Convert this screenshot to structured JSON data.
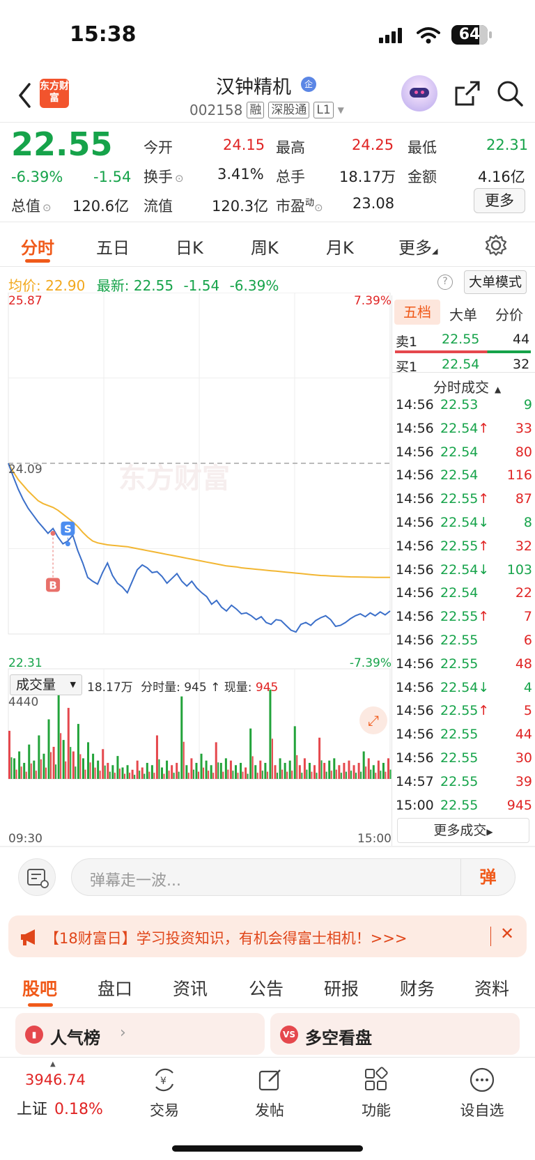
{
  "status_bar": {
    "time": "15:38",
    "battery": "64"
  },
  "header": {
    "logo_text": "东方财富",
    "title": "汉钟精机",
    "badge": "企",
    "code": "002158",
    "tags": [
      "融",
      "深股通",
      "L1"
    ]
  },
  "quote": {
    "price": "22.55",
    "change_pct": "-6.39%",
    "change": "-1.54",
    "fields": [
      {
        "label": "今开",
        "value": "24.15",
        "color": "#e02424"
      },
      {
        "label": "最高",
        "value": "24.25",
        "color": "#e02424"
      },
      {
        "label": "最低",
        "value": "22.31",
        "color": "#16a34a"
      },
      {
        "label": "换手",
        "value": "3.41%",
        "color": "#222222"
      },
      {
        "label": "总手",
        "value": "18.17万",
        "color": "#222222"
      },
      {
        "label": "金额",
        "value": "4.16亿",
        "color": "#222222"
      },
      {
        "label": "总值",
        "value": "120.6亿",
        "color": "#222222"
      },
      {
        "label": "流值",
        "value": "120.3亿",
        "color": "#222222"
      },
      {
        "label": "市盈",
        "value": "23.08",
        "color": "#222222"
      }
    ],
    "pe_sup": "动",
    "more_label": "更多"
  },
  "kline_tabs": [
    "分时",
    "五日",
    "日K",
    "周K",
    "月K",
    "更多"
  ],
  "info_bar": {
    "avg_label": "均价:",
    "avg_value": "22.90",
    "latest_label": "最新:",
    "latest_value": "22.55",
    "latest_change": "-1.54",
    "latest_pct": "-6.39%",
    "big_order_label": "大单模式"
  },
  "chart_data": {
    "type": "line",
    "title": "",
    "y_high": "25.87",
    "y_low": "22.31",
    "y_prev_close": "24.09",
    "pct_high": "7.39%",
    "pct_low": "-7.39%",
    "watermark": "东方财富",
    "x_start": "09:30",
    "x_end": "15:00",
    "ylim": [
      22.31,
      25.87
    ],
    "prev_close": 24.09,
    "price": [
      24.09,
      23.95,
      23.82,
      23.71,
      23.62,
      23.55,
      23.48,
      23.42,
      23.36,
      23.41,
      23.32,
      23.25,
      23.28,
      23.34,
      23.18,
      23.05,
      22.9,
      22.86,
      22.83,
      22.95,
      23.05,
      22.92,
      22.84,
      22.8,
      22.74,
      22.86,
      22.98,
      23.03,
      23.0,
      22.95,
      22.96,
      22.91,
      22.84,
      22.89,
      22.94,
      22.86,
      22.81,
      22.86,
      22.79,
      22.74,
      22.7,
      22.62,
      22.66,
      22.59,
      22.55,
      22.61,
      22.57,
      22.52,
      22.53,
      22.5,
      22.46,
      22.49,
      22.43,
      22.41,
      22.46,
      22.45,
      22.4,
      22.35,
      22.33,
      22.41,
      22.43,
      22.4,
      22.45,
      22.48,
      22.5,
      22.46,
      22.39,
      22.4,
      22.43,
      22.47,
      22.5,
      22.52,
      22.49,
      22.53,
      22.5,
      22.54,
      22.51,
      22.55
    ],
    "avg": [
      24.09,
      24.0,
      23.92,
      23.86,
      23.8,
      23.75,
      23.7,
      23.67,
      23.65,
      23.63,
      23.6,
      23.56,
      23.52,
      23.48,
      23.43,
      23.37,
      23.32,
      23.28,
      23.26,
      23.25,
      23.24,
      23.235,
      23.23,
      23.225,
      23.22,
      23.21,
      23.2,
      23.19,
      23.18,
      23.17,
      23.16,
      23.15,
      23.14,
      23.13,
      23.12,
      23.11,
      23.1,
      23.09,
      23.08,
      23.07,
      23.06,
      23.05,
      23.04,
      23.03,
      23.02,
      23.015,
      23.01,
      23.0,
      22.995,
      22.99,
      22.985,
      22.98,
      22.975,
      22.97,
      22.965,
      22.96,
      22.955,
      22.95,
      22.945,
      22.94,
      22.935,
      22.93,
      22.925,
      22.92,
      22.918,
      22.915,
      22.912,
      22.91,
      22.908,
      22.906,
      22.905,
      22.904,
      22.903,
      22.902,
      22.901,
      22.9,
      22.9,
      22.9
    ],
    "markers": [
      {
        "label": "B",
        "price": 23.36,
        "index": 9
      },
      {
        "label": "S",
        "price": 23.25,
        "index": 12
      }
    ],
    "volume_max": "4440",
    "volume": [
      2100,
      900,
      1200,
      700,
      1500,
      800,
      1900,
      1100,
      2600,
      1400,
      4440,
      1700,
      3100,
      1200,
      2400,
      900,
      1600,
      1100,
      800,
      1300,
      700,
      600,
      1000,
      500,
      600,
      400,
      800,
      500,
      700,
      600,
      1900,
      500,
      800,
      600,
      700,
      3600,
      600,
      900,
      700,
      1100,
      800,
      600,
      1600,
      700,
      900,
      800,
      600,
      700,
      500,
      2200,
      600,
      800,
      700,
      3900,
      600,
      900,
      700,
      800,
      2300,
      600,
      900,
      700,
      600,
      1800,
      700,
      800,
      900,
      600,
      700,
      800,
      600,
      700,
      1200,
      900,
      600,
      800,
      700,
      900
    ]
  },
  "volume_bar": {
    "selector": "成交量",
    "total": "18.17万",
    "tick_label": "分时量:",
    "tick_value": "945",
    "now_label": "现量:",
    "now_value": "945"
  },
  "right_panel": {
    "tabs": [
      "五档",
      "大单",
      "分价"
    ],
    "sell1": {
      "label": "卖1",
      "price": "22.55",
      "vol": "44"
    },
    "buy1": {
      "label": "买1",
      "price": "22.54",
      "vol": "32"
    },
    "trades_title": "分时成交",
    "trades": [
      {
        "time": "14:56",
        "price": "22.53",
        "arrow": "",
        "vol": "9",
        "vcolor": "#16a34a"
      },
      {
        "time": "14:56",
        "price": "22.54",
        "arrow": "↑",
        "vol": "33",
        "vcolor": "#e02424"
      },
      {
        "time": "14:56",
        "price": "22.54",
        "arrow": "",
        "vol": "80",
        "vcolor": "#e02424"
      },
      {
        "time": "14:56",
        "price": "22.54",
        "arrow": "",
        "vol": "116",
        "vcolor": "#e02424"
      },
      {
        "time": "14:56",
        "price": "22.55",
        "arrow": "↑",
        "vol": "87",
        "vcolor": "#e02424"
      },
      {
        "time": "14:56",
        "price": "22.54",
        "arrow": "↓",
        "vol": "8",
        "vcolor": "#16a34a"
      },
      {
        "time": "14:56",
        "price": "22.55",
        "arrow": "↑",
        "vol": "32",
        "vcolor": "#e02424"
      },
      {
        "time": "14:56",
        "price": "22.54",
        "arrow": "↓",
        "vol": "103",
        "vcolor": "#16a34a"
      },
      {
        "time": "14:56",
        "price": "22.54",
        "arrow": "",
        "vol": "22",
        "vcolor": "#e02424"
      },
      {
        "time": "14:56",
        "price": "22.55",
        "arrow": "↑",
        "vol": "7",
        "vcolor": "#e02424"
      },
      {
        "time": "14:56",
        "price": "22.55",
        "arrow": "",
        "vol": "6",
        "vcolor": "#e02424"
      },
      {
        "time": "14:56",
        "price": "22.55",
        "arrow": "",
        "vol": "48",
        "vcolor": "#e02424"
      },
      {
        "time": "14:56",
        "price": "22.54",
        "arrow": "↓",
        "vol": "4",
        "vcolor": "#16a34a"
      },
      {
        "time": "14:56",
        "price": "22.55",
        "arrow": "↑",
        "vol": "5",
        "vcolor": "#e02424"
      },
      {
        "time": "14:56",
        "price": "22.55",
        "arrow": "",
        "vol": "44",
        "vcolor": "#e02424"
      },
      {
        "time": "14:56",
        "price": "22.55",
        "arrow": "",
        "vol": "30",
        "vcolor": "#e02424"
      },
      {
        "time": "14:57",
        "price": "22.55",
        "arrow": "",
        "vol": "39",
        "vcolor": "#e02424"
      },
      {
        "time": "15:00",
        "price": "22.55",
        "arrow": "",
        "vol": "945",
        "vcolor": "#e02424"
      }
    ],
    "more_trades": "更多成交"
  },
  "danmu": {
    "placeholder": "弹幕走一波...",
    "button": "弹"
  },
  "banner": {
    "text": "【18财富日】学习投资知识，有机会得富士相机！>>>"
  },
  "bottom_tabs": [
    "股吧",
    "盘口",
    "资讯",
    "公告",
    "研报",
    "财务",
    "资料"
  ],
  "cards": [
    {
      "icon": "",
      "title": "人气榜"
    },
    {
      "icon": "VS",
      "title": "多空看盘"
    }
  ],
  "nav": {
    "index_value": "3946.74",
    "index_name": "上证",
    "index_pct": "0.18%",
    "items": [
      "交易",
      "发帖",
      "功能",
      "设自选"
    ]
  }
}
